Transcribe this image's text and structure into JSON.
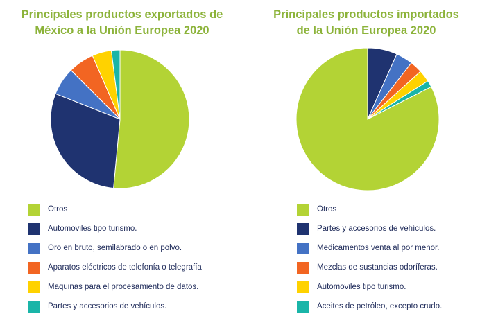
{
  "chart_data": [
    {
      "type": "pie",
      "title_lines": [
        "Principales productos exportados de",
        "México a la Unión Europea 2020"
      ],
      "slices": [
        {
          "label": "Otros",
          "value": 51.5,
          "color": "#b3d335"
        },
        {
          "label": "Automoviles tipo turismo.",
          "value": 29.5,
          "color": "#1f3370"
        },
        {
          "label": "Oro en bruto, semilabrado o en polvo.",
          "value": 6.5,
          "color": "#4472c4"
        },
        {
          "label": "Aparatos eléctricos de telefonía o telegrafía",
          "value": 6.0,
          "color": "#f26522"
        },
        {
          "label": "Maquinas para el procesamiento de datos.",
          "value": 4.5,
          "color": "#ffd200"
        },
        {
          "label": "Partes y accesorios de vehículos.",
          "value": 2.0,
          "color": "#1ab5a8"
        }
      ],
      "legend_position": "bottom"
    },
    {
      "type": "pie",
      "title_lines": [
        "Principales productos importados",
        "de la Unión Europea 2020"
      ],
      "slices": [
        {
          "label": "Partes y accesorios de vehículos.",
          "value": 6.7,
          "color": "#1f3370"
        },
        {
          "label": "Medicamentos venta al por menor.",
          "value": 3.8,
          "color": "#4472c4"
        },
        {
          "label": "Mezclas de sustancias odoríferas.",
          "value": 2.8,
          "color": "#f26522"
        },
        {
          "label": "Automoviles tipo turismo.",
          "value": 2.7,
          "color": "#ffd200"
        },
        {
          "label": "Aceites de petróleo, excepto crudo.",
          "value": 1.5,
          "color": "#1ab5a8"
        },
        {
          "label": "Otros",
          "value": 82.5,
          "color": "#b3d335"
        }
      ],
      "legend": [
        {
          "label": "Otros",
          "color": "#b3d335"
        },
        {
          "label": "Partes y accesorios de vehículos.",
          "color": "#1f3370"
        },
        {
          "label": "Medicamentos venta al por menor.",
          "color": "#4472c4"
        },
        {
          "label": "Mezclas de sustancias odoríferas.",
          "color": "#f26522"
        },
        {
          "label": "Automoviles tipo turismo.",
          "color": "#ffd200"
        },
        {
          "label": "Aceites de petróleo, excepto crudo.",
          "color": "#1ab5a8"
        }
      ],
      "legend_position": "bottom"
    }
  ]
}
